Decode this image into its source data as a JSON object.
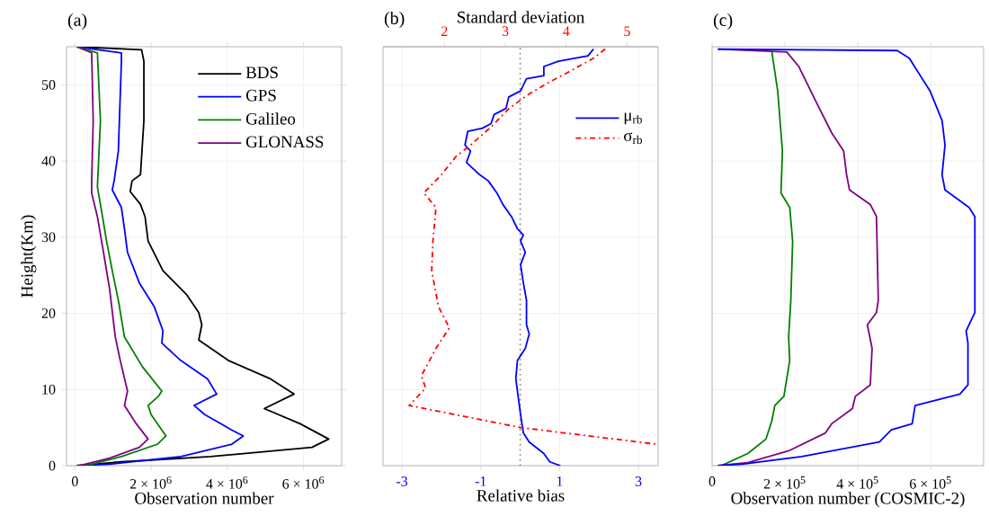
{
  "chart_data": [
    {
      "type": "line",
      "title": "(a)",
      "xlabel": "Observation number",
      "ylabel": "Height(Km)",
      "xlim": [
        -220000,
        7000000
      ],
      "ylim": [
        0,
        55
      ],
      "xticks": [
        0,
        {
          "value": 2000000,
          "label": "2 × 10$^{6}$"
        },
        {
          "value": 4000000,
          "label": "4 × 10$^{6}$"
        },
        {
          "value": 6000000,
          "label": "6 × 10$^{6}$"
        }
      ],
      "yticks": [
        0,
        10,
        20,
        30,
        40,
        50
      ],
      "grid": true,
      "legend": "top right",
      "series": [
        {
          "name": "BDS",
          "color": "#000000",
          "x": [
            50000,
            1750000,
            1810000,
            1810000,
            1720000,
            1500000,
            1450000,
            1720000,
            1840000,
            1920000,
            2310000,
            2940000,
            3250000,
            3330000,
            3250000,
            4030000,
            5130000,
            5750000,
            4970000,
            5910000,
            6660000,
            6220000,
            3560000,
            1220000,
            130000
          ],
          "values": [
            55,
            54.6,
            53.1,
            45.3,
            38.2,
            37.4,
            36,
            34.3,
            32.7,
            29.5,
            25.6,
            22.4,
            20.1,
            18.5,
            16.5,
            13.8,
            11.4,
            9.4,
            7.5,
            5.5,
            3.5,
            2.4,
            1.2,
            0.5,
            0
          ]
        },
        {
          "name": "GPS",
          "color": "#0000ff",
          "x": [
            50000,
            1220000,
            1220000,
            1140000,
            1030000,
            980000,
            1220000,
            1300000,
            1380000,
            1690000,
            2080000,
            2310000,
            2280000,
            2780000,
            3480000,
            3720000,
            3130000,
            3410000,
            4110000,
            4420000,
            4110000,
            2780000,
            910000,
            50000
          ],
          "values": [
            55,
            54.2,
            53.1,
            41.3,
            37.4,
            36.2,
            33.9,
            31.1,
            28,
            24,
            20.9,
            17.7,
            16.1,
            13.8,
            11.4,
            9.4,
            7.9,
            6.7,
            4.7,
            3.9,
            2.8,
            1.2,
            0.2,
            0
          ]
        },
        {
          "name": "Galileo",
          "color": "#008000",
          "x": [
            50000,
            590000,
            670000,
            590000,
            670000,
            830000,
            980000,
            1140000,
            1300000,
            1770000,
            2280000,
            2190000,
            1920000,
            2000000,
            2390000,
            2160000,
            1220000,
            440000,
            50000
          ],
          "values": [
            55,
            54.2,
            45.3,
            36.6,
            34.3,
            29.5,
            25.6,
            21.7,
            16.9,
            13,
            9.8,
            9.1,
            7.9,
            6.7,
            3.9,
            2.8,
            1.2,
            0.2,
            0
          ]
        },
        {
          "name": "GLONASS",
          "color": "#800080",
          "x": [
            50000,
            440000,
            480000,
            440000,
            440000,
            590000,
            750000,
            910000,
            1060000,
            1190000,
            1380000,
            1300000,
            1610000,
            1920000,
            1690000,
            910000,
            200000,
            50000
          ],
          "values": [
            55,
            54.2,
            45.3,
            37.4,
            35.8,
            32.7,
            28,
            23.2,
            16.9,
            13.8,
            9.8,
            7.9,
            5.5,
            3.5,
            2.4,
            1,
            0.1,
            0
          ]
        }
      ]
    },
    {
      "type": "line",
      "title": "(b)",
      "xlabel": "Relative bias",
      "x2label": "Standard deviation",
      "xlim": [
        -3.48,
        3.5
      ],
      "x2lim": [
        0.99,
        5.51
      ],
      "ylim": [
        0,
        55
      ],
      "xticks": [
        -3,
        -1,
        1,
        3
      ],
      "x2ticks": [
        2,
        3,
        4,
        5
      ],
      "yticks": [
        0,
        10,
        20,
        30,
        40,
        50
      ],
      "grid": true,
      "legend": "top right",
      "tick_labels": "x",
      "ref_lines": [
        {
          "axis": "x",
          "value": 0,
          "color": "#808080",
          "line_style": "dotted"
        }
      ],
      "series": [
        {
          "name": "μ$_{rb}$",
          "color": "#0000ff",
          "x": [
            1.86,
            1.72,
            0.97,
            0.6,
            0.6,
            0.16,
            0.01,
            -0.29,
            -0.36,
            -0.66,
            -0.74,
            -0.96,
            -1.33,
            -1.4,
            -1.26,
            -1.36,
            -1.03,
            -0.81,
            -0.59,
            -0.44,
            -0.22,
            -0.07,
            0.08,
            0.01,
            0.13,
            0.01,
            0.08,
            0.16,
            0.16,
            0.23,
            0.13,
            -0.07,
            -0.11,
            -0.07,
            0.01,
            0.08,
            0.23,
            0.6,
            0.75,
            1.02
          ],
          "values": [
            54.7,
            53.8,
            53.1,
            52.4,
            51.2,
            50.8,
            49.2,
            48.4,
            46.9,
            46.1,
            44.9,
            44.3,
            43.9,
            42.1,
            41.3,
            39.8,
            38.2,
            37.4,
            35.8,
            34.3,
            32.7,
            31.1,
            30.3,
            29.5,
            28,
            26.4,
            24,
            21.7,
            18.5,
            17.3,
            15.4,
            13.8,
            11.4,
            9.8,
            6.7,
            4.3,
            3.1,
            1.6,
            0.5,
            0
          ]
        },
        {
          "name": "σ$_{rb}$",
          "color": "#ff0000",
          "axis": "x2",
          "line_style": "dashdot",
          "x": [
            4.64,
            4.45,
            4.02,
            3.73,
            3.39,
            3.06,
            2.77,
            2.43,
            2.19,
            1.95,
            1.66,
            1.86,
            1.81,
            1.79,
            1.9,
            2.08,
            1.86,
            1.62,
            1.69,
            1.42,
            3.25,
            5.5
          ],
          "values": [
            54.7,
            53.5,
            51.6,
            50.4,
            48.8,
            46.9,
            44.5,
            42.1,
            40.6,
            38.2,
            35.8,
            33.9,
            29.5,
            25.6,
            20.9,
            18.1,
            15.4,
            11.8,
            10.2,
            7.9,
            5.0,
            2.8
          ]
        }
      ]
    },
    {
      "type": "line",
      "title": "(c)",
      "xlabel": "Observation number (COSMIC-2)",
      "xlim": [
        0,
        745000
      ],
      "ylim": [
        0,
        55
      ],
      "xticks": [
        0,
        {
          "value": 200000,
          "label": "2 × 10$^{5}$"
        },
        {
          "value": 400000,
          "label": "4 × 10$^{5}$"
        },
        {
          "value": 600000,
          "label": "6 × 10$^{5}$"
        }
      ],
      "yticks": [
        0,
        10,
        20,
        30,
        40,
        50
      ],
      "grid": true,
      "tick_labels": "x",
      "series": [
        {
          "color": "#008000",
          "x": [
            164000,
            180000,
            193000,
            189000,
            213000,
            221000,
            216000,
            210000,
            213000,
            197000,
            172000,
            164000,
            148000,
            98000,
            25000
          ],
          "values": [
            54.3,
            49.2,
            41.3,
            35.8,
            33.9,
            29.5,
            21.7,
            16.9,
            13.8,
            9.1,
            7.9,
            5.9,
            3.5,
            1.6,
            0
          ]
        },
        {
          "color": "#800080",
          "x": [
            16000,
            205000,
            238000,
            287000,
            328000,
            361000,
            369000,
            377000,
            434000,
            451000,
            456000,
            451000,
            426000,
            439000,
            434000,
            393000,
            385000,
            328000,
            311000,
            213000,
            98000,
            16000
          ],
          "values": [
            54.7,
            54.3,
            52.4,
            47.6,
            43.7,
            41.3,
            38.2,
            36.2,
            34.3,
            32.7,
            21.7,
            20.1,
            18.5,
            15.4,
            10.6,
            9.1,
            7.5,
            5.5,
            4.3,
            2.0,
            0.4,
            0
          ]
        },
        {
          "color": "#0000ff",
          "x": [
            16000,
            508000,
            541000,
            598000,
            631000,
            639000,
            631000,
            639000,
            705000,
            721000,
            721000,
            697000,
            702000,
            702000,
            680000,
            557000,
            549000,
            492000,
            459000,
            246000,
            82000,
            16000
          ],
          "values": [
            54.7,
            54.5,
            53.5,
            49.2,
            45.3,
            42.1,
            38.2,
            36.2,
            33.9,
            32.7,
            20.1,
            17.7,
            16.1,
            10.6,
            9.4,
            7.9,
            5.5,
            4.7,
            3.1,
            1.2,
            0.2,
            0
          ]
        }
      ]
    }
  ]
}
